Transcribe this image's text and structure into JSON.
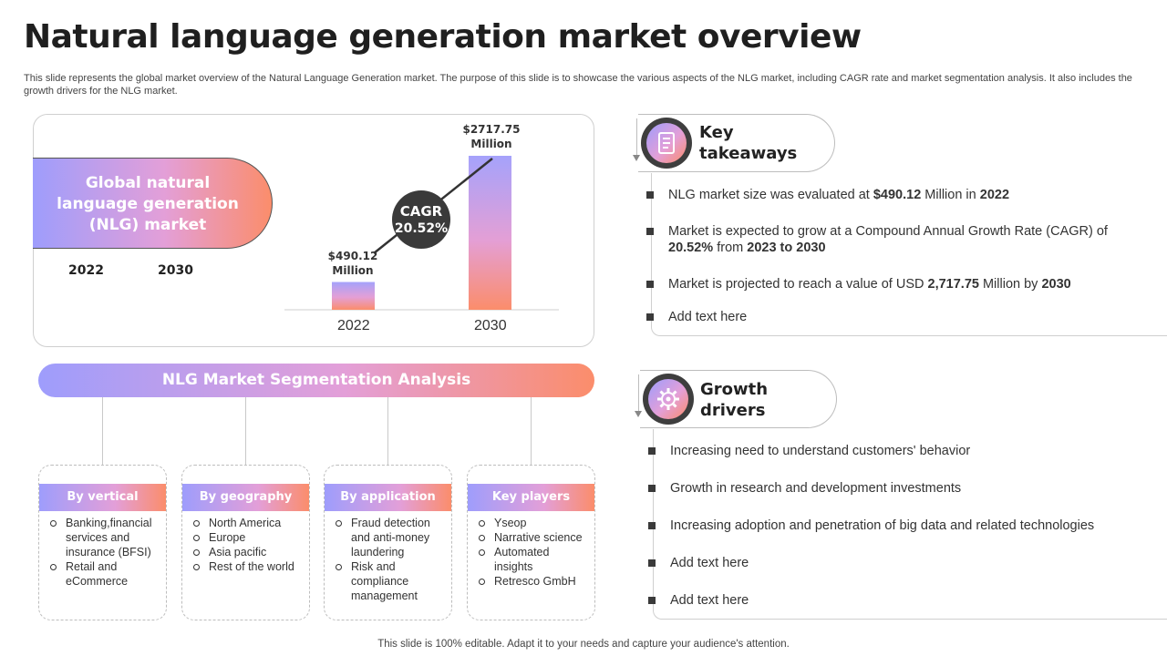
{
  "title": "Natural language generation market overview",
  "description": "This slide represents the global market overview of the Natural Language Generation market. The purpose of this slide is to showcase the various aspects of the NLG market, including CAGR rate and market segmentation analysis. It also includes the growth drivers for the NLG market.",
  "market": {
    "pill_text": "Global natural language generation (NLG) market",
    "years": [
      "2022",
      "2030"
    ]
  },
  "chart_data": {
    "type": "bar",
    "categories": [
      "2022",
      "2030"
    ],
    "values": [
      490.12,
      2717.75
    ],
    "value_labels": [
      "$490.12\nMillion",
      "$2717.75\nMillion"
    ],
    "annotation": {
      "label": "CAGR",
      "value": "20.52%"
    },
    "colors": [
      "#9e9dfc",
      "#e39fd8",
      "#fb8d6b"
    ]
  },
  "segmentation": {
    "title": "NLG Market Segmentation Analysis",
    "cards": [
      {
        "heading": "By vertical",
        "items": [
          "Banking,financial services and insurance (BFSI)",
          "Retail and eCommerce"
        ]
      },
      {
        "heading": "By geography",
        "items": [
          "North America",
          "Europe",
          "Asia pacific",
          "Rest of the world"
        ]
      },
      {
        "heading": "By application",
        "items": [
          "Fraud detection and anti-money laundering",
          "Risk and compliance management"
        ]
      },
      {
        "heading": "Key players",
        "items": [
          "Yseop",
          "Narrative science",
          "Automated insights",
          "Retresco GmbH"
        ]
      }
    ]
  },
  "key_takeaways": {
    "title_line1": "Key",
    "title_line2": "takeaways",
    "icon": "document-list-icon",
    "items": [
      {
        "parts": [
          [
            "NLG market size was evaluated at ",
            false
          ],
          [
            "$490.12",
            true
          ],
          [
            " Million in ",
            false
          ],
          [
            "2022",
            true
          ]
        ]
      },
      {
        "parts": [
          [
            "Market is expected to grow at a Compound Annual Growth Rate (CAGR) of ",
            false
          ],
          [
            "20.52%",
            true
          ],
          [
            " from ",
            false
          ],
          [
            "2023 to 2030",
            true
          ]
        ]
      },
      {
        "parts": [
          [
            "Market is projected to reach a value of USD ",
            false
          ],
          [
            "2,717.75",
            true
          ],
          [
            " Million by ",
            false
          ],
          [
            "2030",
            true
          ]
        ]
      },
      {
        "parts": [
          [
            "Add text here",
            false
          ]
        ]
      }
    ]
  },
  "growth_drivers": {
    "title_line1": "Growth",
    "title_line2": "drivers",
    "icon": "gear-chart-icon",
    "items": [
      "Increasing need to understand customers' behavior",
      "Growth in research and development investments",
      "Increasing adoption and penetration of big data and related technologies",
      "Add text here",
      "Add text here"
    ]
  },
  "footer": "This slide is 100% editable. Adapt it to your needs and capture your audience's attention."
}
